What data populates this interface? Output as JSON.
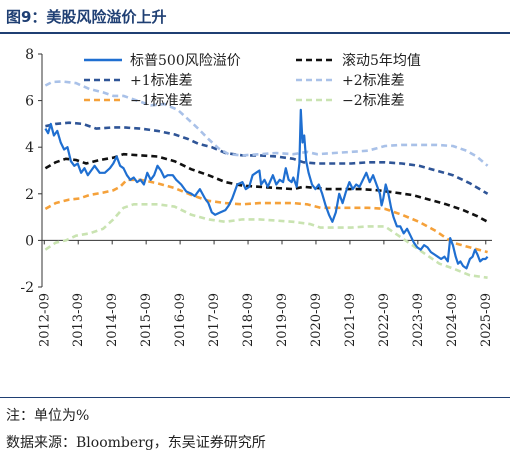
{
  "figure": {
    "title": "图9：美股风险溢价上升",
    "note": "注：单位为%",
    "source": "数据来源：Bloomberg，东吴证券研究所"
  },
  "chart_data": {
    "type": "line",
    "title": "",
    "xlabel": "",
    "ylabel": "",
    "ylim": [
      -2,
      8
    ],
    "xlim": [
      2012.6,
      2025.85
    ],
    "yticks": [
      -2,
      0,
      2,
      4,
      6,
      8
    ],
    "xticks": [
      "2012-09",
      "2013-09",
      "2014-09",
      "2015-09",
      "2016-09",
      "2017-09",
      "2018-09",
      "2019-09",
      "2020-09",
      "2021-09",
      "2022-09",
      "2023-09",
      "2024-09",
      "2025-09"
    ],
    "grid": false,
    "legend_position": "top",
    "series": [
      {
        "name": "标普500风险溢价",
        "color": "#1f6fd1",
        "style": "solid",
        "points": [
          [
            2012.7,
            4.8
          ],
          [
            2012.78,
            4.6
          ],
          [
            2012.86,
            5.0
          ],
          [
            2012.95,
            4.5
          ],
          [
            2013.05,
            4.7
          ],
          [
            2013.15,
            4.2
          ],
          [
            2013.25,
            3.9
          ],
          [
            2013.35,
            4.0
          ],
          [
            2013.45,
            3.4
          ],
          [
            2013.55,
            3.2
          ],
          [
            2013.65,
            3.3
          ],
          [
            2013.75,
            2.9
          ],
          [
            2013.85,
            3.1
          ],
          [
            2013.95,
            2.8
          ],
          [
            2014.05,
            3.0
          ],
          [
            2014.15,
            3.2
          ],
          [
            2014.3,
            2.9
          ],
          [
            2014.45,
            2.9
          ],
          [
            2014.6,
            3.1
          ],
          [
            2014.7,
            3.3
          ],
          [
            2014.8,
            3.6
          ],
          [
            2014.9,
            3.2
          ],
          [
            2015.0,
            3.1
          ],
          [
            2015.1,
            2.8
          ],
          [
            2015.2,
            2.6
          ],
          [
            2015.3,
            2.7
          ],
          [
            2015.4,
            2.5
          ],
          [
            2015.5,
            2.6
          ],
          [
            2015.6,
            2.4
          ],
          [
            2015.7,
            2.9
          ],
          [
            2015.8,
            2.6
          ],
          [
            2015.9,
            2.8
          ],
          [
            2016.0,
            3.2
          ],
          [
            2016.1,
            3.0
          ],
          [
            2016.2,
            2.7
          ],
          [
            2016.3,
            2.8
          ],
          [
            2016.45,
            2.8
          ],
          [
            2016.55,
            2.6
          ],
          [
            2016.7,
            2.4
          ],
          [
            2016.85,
            2.1
          ],
          [
            2017.0,
            2.0
          ],
          [
            2017.1,
            1.9
          ],
          [
            2017.25,
            2.2
          ],
          [
            2017.4,
            1.8
          ],
          [
            2017.5,
            1.6
          ],
          [
            2017.6,
            1.2
          ],
          [
            2017.7,
            1.1
          ],
          [
            2017.85,
            1.2
          ],
          [
            2018.0,
            1.3
          ],
          [
            2018.1,
            1.5
          ],
          [
            2018.2,
            1.8
          ],
          [
            2018.35,
            2.4
          ],
          [
            2018.5,
            2.5
          ],
          [
            2018.6,
            2.2
          ],
          [
            2018.7,
            2.3
          ],
          [
            2018.8,
            2.8
          ],
          [
            2018.9,
            2.9
          ],
          [
            2019.0,
            3.0
          ],
          [
            2019.05,
            2.4
          ],
          [
            2019.15,
            2.6
          ],
          [
            2019.25,
            2.3
          ],
          [
            2019.4,
            2.8
          ],
          [
            2019.5,
            2.4
          ],
          [
            2019.6,
            2.6
          ],
          [
            2019.7,
            2.5
          ],
          [
            2019.78,
            3.1
          ],
          [
            2019.86,
            2.6
          ],
          [
            2019.95,
            2.5
          ],
          [
            2020.0,
            2.7
          ],
          [
            2020.1,
            2.3
          ],
          [
            2020.18,
            3.3
          ],
          [
            2020.22,
            5.6
          ],
          [
            2020.27,
            4.2
          ],
          [
            2020.32,
            4.5
          ],
          [
            2020.38,
            3.4
          ],
          [
            2020.45,
            2.9
          ],
          [
            2020.55,
            2.4
          ],
          [
            2020.65,
            2.2
          ],
          [
            2020.75,
            2.4
          ],
          [
            2020.85,
            2.0
          ],
          [
            2020.95,
            1.5
          ],
          [
            2021.05,
            1.1
          ],
          [
            2021.15,
            0.8
          ],
          [
            2021.25,
            1.2
          ],
          [
            2021.35,
            2.0
          ],
          [
            2021.45,
            1.6
          ],
          [
            2021.55,
            2.1
          ],
          [
            2021.65,
            2.5
          ],
          [
            2021.75,
            2.2
          ],
          [
            2021.85,
            2.4
          ],
          [
            2021.95,
            2.3
          ],
          [
            2022.05,
            2.6
          ],
          [
            2022.15,
            2.9
          ],
          [
            2022.25,
            2.5
          ],
          [
            2022.35,
            2.8
          ],
          [
            2022.45,
            2.4
          ],
          [
            2022.55,
            2.0
          ],
          [
            2022.6,
            1.5
          ],
          [
            2022.65,
            1.8
          ],
          [
            2022.72,
            2.4
          ],
          [
            2022.8,
            2.0
          ],
          [
            2022.88,
            1.4
          ],
          [
            2022.95,
            1.0
          ],
          [
            2023.05,
            0.6
          ],
          [
            2023.15,
            0.6
          ],
          [
            2023.25,
            0.3
          ],
          [
            2023.35,
            0.5
          ],
          [
            2023.45,
            0.2
          ],
          [
            2023.55,
            -0.1
          ],
          [
            2023.65,
            -0.3
          ],
          [
            2023.75,
            -0.4
          ],
          [
            2023.85,
            -0.2
          ],
          [
            2023.95,
            -0.3
          ],
          [
            2024.05,
            -0.5
          ],
          [
            2024.15,
            -0.6
          ],
          [
            2024.25,
            -0.7
          ],
          [
            2024.35,
            -0.8
          ],
          [
            2024.45,
            -0.7
          ],
          [
            2024.55,
            -0.9
          ],
          [
            2024.62,
            0.1
          ],
          [
            2024.7,
            -0.2
          ],
          [
            2024.78,
            -0.7
          ],
          [
            2024.85,
            -1.0
          ],
          [
            2024.92,
            -0.9
          ],
          [
            2025.0,
            -1.1
          ],
          [
            2025.1,
            -1.2
          ],
          [
            2025.2,
            -0.8
          ],
          [
            2025.28,
            -0.7
          ],
          [
            2025.35,
            -0.4
          ],
          [
            2025.42,
            -0.6
          ],
          [
            2025.5,
            -0.9
          ],
          [
            2025.58,
            -0.8
          ],
          [
            2025.66,
            -0.8
          ],
          [
            2025.72,
            -0.7
          ]
        ]
      },
      {
        "name": "滚动5年均值",
        "color": "#111111",
        "style": "dash",
        "points": [
          [
            2012.7,
            3.1
          ],
          [
            2013.0,
            3.35
          ],
          [
            2013.3,
            3.5
          ],
          [
            2013.6,
            3.45
          ],
          [
            2013.9,
            3.3
          ],
          [
            2014.3,
            3.45
          ],
          [
            2014.7,
            3.55
          ],
          [
            2015.0,
            3.7
          ],
          [
            2015.5,
            3.65
          ],
          [
            2016.0,
            3.6
          ],
          [
            2016.5,
            3.4
          ],
          [
            2017.0,
            3.05
          ],
          [
            2017.5,
            2.8
          ],
          [
            2018.0,
            2.5
          ],
          [
            2018.5,
            2.35
          ],
          [
            2019.0,
            2.3
          ],
          [
            2019.5,
            2.25
          ],
          [
            2020.0,
            2.2
          ],
          [
            2020.3,
            2.3
          ],
          [
            2020.7,
            2.25
          ],
          [
            2021.0,
            2.2
          ],
          [
            2021.5,
            2.2
          ],
          [
            2022.0,
            2.2
          ],
          [
            2022.5,
            2.15
          ],
          [
            2023.0,
            2.05
          ],
          [
            2023.5,
            1.95
          ],
          [
            2024.0,
            1.75
          ],
          [
            2024.5,
            1.55
          ],
          [
            2025.0,
            1.3
          ],
          [
            2025.4,
            1.05
          ],
          [
            2025.72,
            0.8
          ]
        ]
      },
      {
        "name": "+1标准差",
        "color": "#2f5597",
        "style": "dash",
        "points": [
          [
            2012.7,
            4.9
          ],
          [
            2013.0,
            5.0
          ],
          [
            2013.4,
            5.05
          ],
          [
            2013.8,
            5.0
          ],
          [
            2014.2,
            4.8
          ],
          [
            2014.7,
            4.85
          ],
          [
            2015.0,
            4.85
          ],
          [
            2015.5,
            4.8
          ],
          [
            2016.0,
            4.7
          ],
          [
            2016.5,
            4.55
          ],
          [
            2016.9,
            4.35
          ],
          [
            2017.2,
            4.15
          ],
          [
            2017.6,
            4.0
          ],
          [
            2018.0,
            3.75
          ],
          [
            2018.5,
            3.65
          ],
          [
            2019.0,
            3.65
          ],
          [
            2019.5,
            3.6
          ],
          [
            2020.0,
            3.5
          ],
          [
            2020.3,
            3.35
          ],
          [
            2020.7,
            3.3
          ],
          [
            2021.2,
            3.3
          ],
          [
            2021.7,
            3.3
          ],
          [
            2022.2,
            3.35
          ],
          [
            2022.7,
            3.35
          ],
          [
            2023.2,
            3.3
          ],
          [
            2023.7,
            3.2
          ],
          [
            2024.2,
            3.0
          ],
          [
            2024.7,
            2.8
          ],
          [
            2025.2,
            2.45
          ],
          [
            2025.72,
            2.0
          ]
        ]
      },
      {
        "name": "+2标准差",
        "color": "#a9c1e8",
        "style": "dash",
        "points": [
          [
            2012.7,
            6.65
          ],
          [
            2012.9,
            6.8
          ],
          [
            2013.2,
            6.82
          ],
          [
            2013.6,
            6.75
          ],
          [
            2014.0,
            6.5
          ],
          [
            2014.4,
            6.35
          ],
          [
            2014.7,
            6.2
          ],
          [
            2015.0,
            6.2
          ],
          [
            2015.4,
            6.0
          ],
          [
            2015.8,
            5.8
          ],
          [
            2016.2,
            5.85
          ],
          [
            2016.6,
            5.6
          ],
          [
            2016.9,
            5.2
          ],
          [
            2017.2,
            4.8
          ],
          [
            2017.5,
            4.35
          ],
          [
            2017.8,
            3.95
          ],
          [
            2018.1,
            3.7
          ],
          [
            2018.5,
            3.65
          ],
          [
            2019.0,
            3.7
          ],
          [
            2019.5,
            3.75
          ],
          [
            2020.0,
            3.7
          ],
          [
            2020.4,
            3.8
          ],
          [
            2020.7,
            3.7
          ],
          [
            2021.2,
            3.75
          ],
          [
            2021.7,
            3.8
          ],
          [
            2022.2,
            3.85
          ],
          [
            2022.7,
            4.05
          ],
          [
            2023.2,
            4.1
          ],
          [
            2023.7,
            4.1
          ],
          [
            2024.2,
            4.1
          ],
          [
            2024.7,
            4.05
          ],
          [
            2025.1,
            3.85
          ],
          [
            2025.4,
            3.6
          ],
          [
            2025.72,
            3.2
          ]
        ]
      },
      {
        "name": "−1标准差",
        "color": "#f5a13a",
        "style": "dash",
        "points": [
          [
            2012.7,
            1.35
          ],
          [
            2013.0,
            1.6
          ],
          [
            2013.4,
            1.75
          ],
          [
            2013.7,
            1.8
          ],
          [
            2014.0,
            1.95
          ],
          [
            2014.4,
            2.05
          ],
          [
            2014.7,
            2.15
          ],
          [
            2014.9,
            2.3
          ],
          [
            2015.1,
            2.6
          ],
          [
            2015.5,
            2.6
          ],
          [
            2016.0,
            2.45
          ],
          [
            2016.5,
            2.25
          ],
          [
            2017.0,
            1.95
          ],
          [
            2017.5,
            1.7
          ],
          [
            2018.0,
            1.6
          ],
          [
            2018.5,
            1.55
          ],
          [
            2019.0,
            1.6
          ],
          [
            2019.5,
            1.6
          ],
          [
            2020.0,
            1.6
          ],
          [
            2020.4,
            1.55
          ],
          [
            2020.8,
            1.4
          ],
          [
            2021.2,
            1.4
          ],
          [
            2021.7,
            1.4
          ],
          [
            2022.2,
            1.4
          ],
          [
            2022.7,
            1.35
          ],
          [
            2023.2,
            1.1
          ],
          [
            2023.7,
            0.8
          ],
          [
            2024.2,
            0.4
          ],
          [
            2024.7,
            -0.1
          ],
          [
            2025.2,
            -0.3
          ],
          [
            2025.72,
            -0.5
          ]
        ]
      },
      {
        "name": "−2标准差",
        "color": "#c9e3b1",
        "style": "dash",
        "points": [
          [
            2012.7,
            -0.4
          ],
          [
            2013.0,
            -0.1
          ],
          [
            2013.3,
            0.0
          ],
          [
            2013.6,
            0.2
          ],
          [
            2014.0,
            0.3
          ],
          [
            2014.4,
            0.5
          ],
          [
            2014.7,
            0.9
          ],
          [
            2015.0,
            1.4
          ],
          [
            2015.3,
            1.55
          ],
          [
            2015.7,
            1.55
          ],
          [
            2016.0,
            1.55
          ],
          [
            2016.5,
            1.45
          ],
          [
            2017.0,
            1.1
          ],
          [
            2017.5,
            0.9
          ],
          [
            2018.0,
            0.8
          ],
          [
            2018.5,
            0.9
          ],
          [
            2019.0,
            0.9
          ],
          [
            2019.5,
            0.85
          ],
          [
            2020.0,
            0.8
          ],
          [
            2020.5,
            0.7
          ],
          [
            2020.8,
            0.55
          ],
          [
            2021.2,
            0.55
          ],
          [
            2021.7,
            0.55
          ],
          [
            2022.2,
            0.6
          ],
          [
            2022.7,
            0.6
          ],
          [
            2023.1,
            0.2
          ],
          [
            2023.5,
            -0.2
          ],
          [
            2023.9,
            -0.6
          ],
          [
            2024.3,
            -1.0
          ],
          [
            2024.7,
            -1.2
          ],
          [
            2025.2,
            -1.5
          ],
          [
            2025.72,
            -1.6
          ]
        ]
      }
    ]
  }
}
